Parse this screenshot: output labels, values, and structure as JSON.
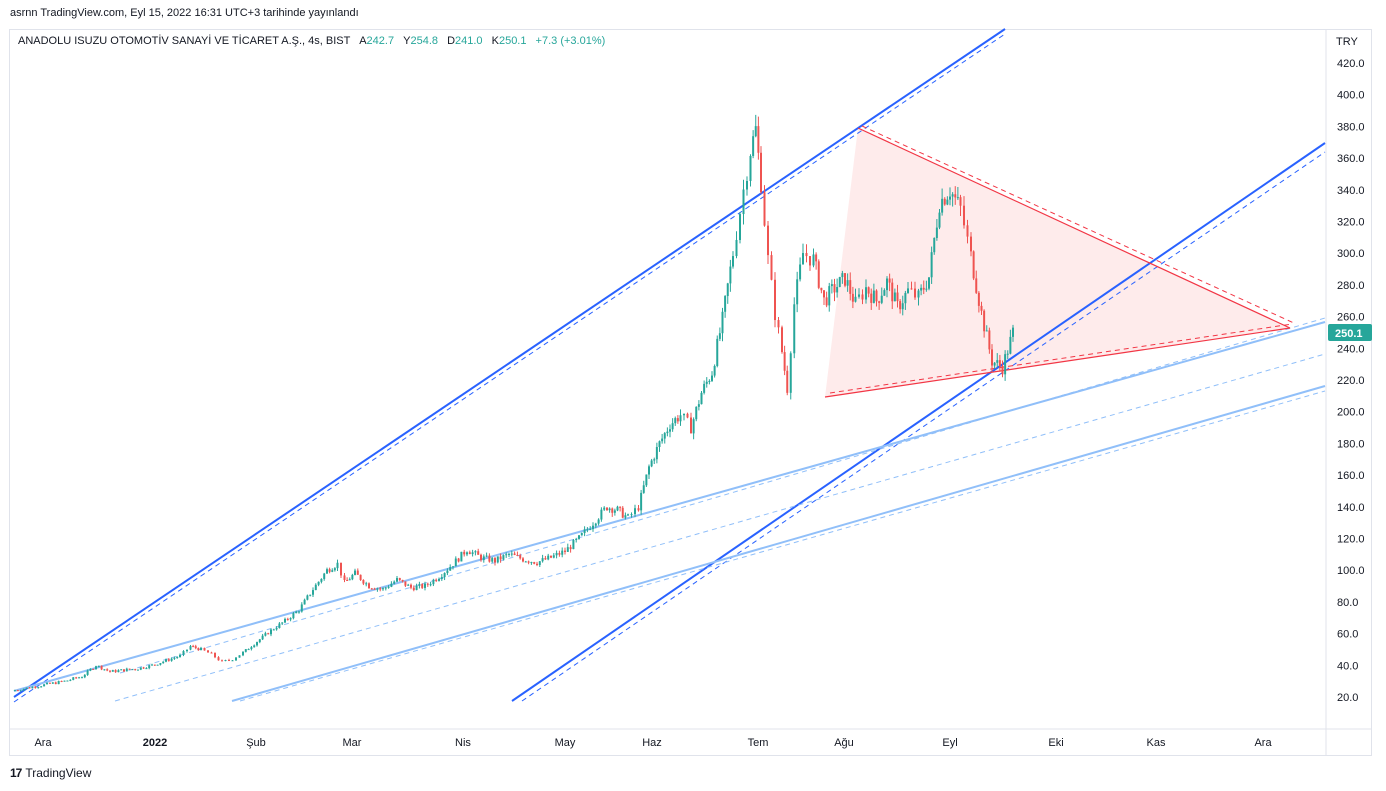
{
  "header": {
    "published": "asrnn TradingView.com, Eyl 15, 2022 16:31 UTC+3 tarihinde yayınlandı"
  },
  "legend": {
    "symbol": "ANADOLU ISUZU OTOMOTİV SANAYİ VE TİCARET A.Ş., 4s, BIST",
    "open_label": "A",
    "open": "242.7",
    "high_label": "Y",
    "high": "254.8",
    "low_label": "D",
    "low": "241.0",
    "close_label": "K",
    "close": "250.1",
    "change": "+7.3 (+3.01%)"
  },
  "footer": {
    "brand": "TradingView"
  },
  "colors": {
    "up": "#26a69a",
    "down": "#ef5350",
    "channel_dark": "#2962ff",
    "channel_light": "#90bff9",
    "triangle_line": "#f23645",
    "triangle_fill": "#fce4e4",
    "price_tag": "#26a69a"
  },
  "chart_data": {
    "type": "candlestick",
    "currency": "TRY",
    "ylim": [
      20,
      430
    ],
    "y_ticks": [
      "420.0",
      "400.0",
      "380.0",
      "360.0",
      "340.0",
      "320.0",
      "300.0",
      "280.0",
      "260.0",
      "240.0",
      "220.0",
      "200.0",
      "180.0",
      "160.0",
      "140.0",
      "120.0",
      "100.0",
      "80.0",
      "60.0",
      "40.0",
      "20.0"
    ],
    "x_ticks": [
      "Ara",
      "2022",
      "Şub",
      "Mar",
      "Nis",
      "May",
      "Haz",
      "Tem",
      "Ağu",
      "Eyl",
      "Eki",
      "Kas",
      "Ara"
    ],
    "last_price": "250.1",
    "price_path": [
      [
        0,
        24
      ],
      [
        0.5,
        26
      ],
      [
        1.0,
        28
      ],
      [
        1.5,
        30
      ],
      [
        2.0,
        33
      ],
      [
        2.4,
        40
      ],
      [
        2.8,
        36
      ],
      [
        3.2,
        37
      ],
      [
        3.6,
        38
      ],
      [
        4.0,
        40
      ],
      [
        4.4,
        43
      ],
      [
        4.8,
        46
      ],
      [
        5.1,
        52
      ],
      [
        5.4,
        50
      ],
      [
        5.7,
        47
      ],
      [
        6.0,
        42
      ],
      [
        6.3,
        44
      ],
      [
        6.6,
        48
      ],
      [
        7.0,
        55
      ],
      [
        7.4,
        62
      ],
      [
        7.8,
        68
      ],
      [
        8.2,
        75
      ],
      [
        8.6,
        88
      ],
      [
        9.0,
        100
      ],
      [
        9.3,
        104
      ],
      [
        9.5,
        92
      ],
      [
        9.8,
        98
      ],
      [
        10.2,
        90
      ],
      [
        10.6,
        88
      ],
      [
        11.0,
        94
      ],
      [
        11.4,
        89
      ],
      [
        11.8,
        90
      ],
      [
        12.2,
        96
      ],
      [
        12.6,
        104
      ],
      [
        13.0,
        113
      ],
      [
        13.4,
        108
      ],
      [
        13.8,
        106
      ],
      [
        14.2,
        110
      ],
      [
        14.6,
        107
      ],
      [
        15.0,
        105
      ],
      [
        15.4,
        108
      ],
      [
        15.8,
        112
      ],
      [
        16.2,
        120
      ],
      [
        16.6,
        130
      ],
      [
        17.0,
        140
      ],
      [
        17.3,
        138
      ],
      [
        17.6,
        133
      ],
      [
        17.9,
        140
      ],
      [
        18.2,
        165
      ],
      [
        18.5,
        180
      ],
      [
        18.8,
        192
      ],
      [
        19.1,
        198
      ],
      [
        19.4,
        190
      ],
      [
        19.7,
        212
      ],
      [
        20.0,
        225
      ],
      [
        20.3,
        258
      ],
      [
        20.6,
        300
      ],
      [
        20.9,
        340
      ],
      [
        21.1,
        365
      ],
      [
        21.25,
        378
      ],
      [
        21.4,
        345
      ],
      [
        21.6,
        296
      ],
      [
        21.8,
        262
      ],
      [
        22.0,
        238
      ],
      [
        22.15,
        215
      ],
      [
        22.35,
        268
      ],
      [
        22.6,
        300
      ],
      [
        22.9,
        296
      ],
      [
        23.2,
        270
      ],
      [
        23.5,
        278
      ],
      [
        23.8,
        284
      ],
      [
        24.1,
        268
      ],
      [
        24.4,
        278
      ],
      [
        24.7,
        270
      ],
      [
        25.0,
        282
      ],
      [
        25.3,
        266
      ],
      [
        25.6,
        276
      ],
      [
        25.9,
        272
      ],
      [
        26.2,
        285
      ],
      [
        26.5,
        332
      ],
      [
        26.8,
        340
      ],
      [
        27.1,
        328
      ],
      [
        27.4,
        298
      ],
      [
        27.7,
        262
      ],
      [
        28.0,
        232
      ],
      [
        28.3,
        228
      ],
      [
        28.6,
        250
      ]
    ]
  }
}
